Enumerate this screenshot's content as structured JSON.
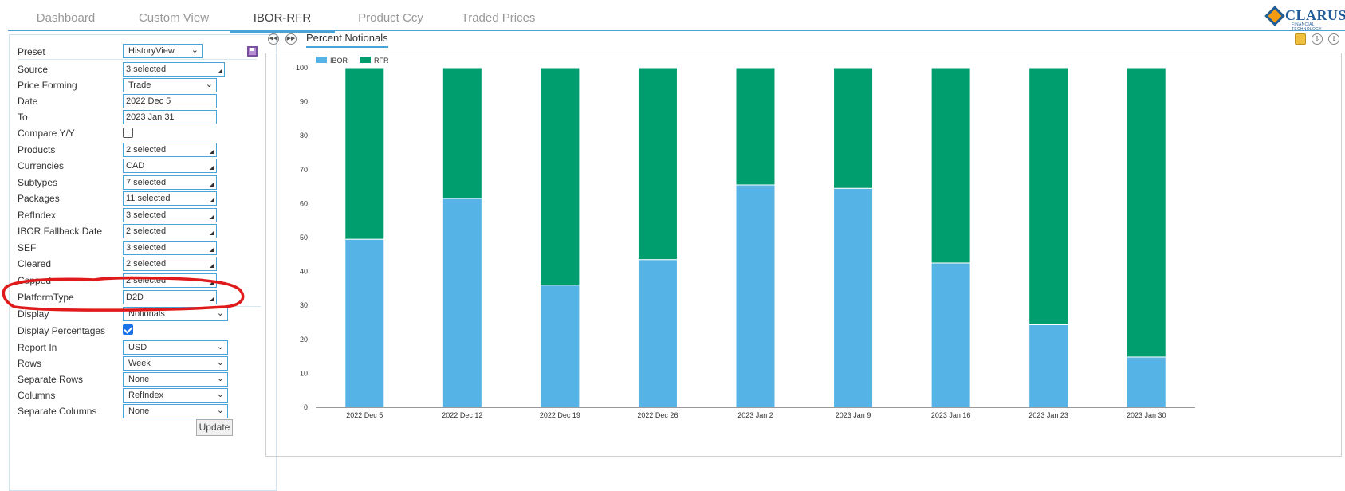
{
  "tabs": [
    {
      "label": "Dashboard",
      "active": false
    },
    {
      "label": "Custom View",
      "active": false
    },
    {
      "label": "IBOR-RFR",
      "active": true
    },
    {
      "label": "Product Ccy",
      "active": false
    },
    {
      "label": "Traded Prices",
      "active": false
    }
  ],
  "logo": {
    "name": "CLARUS",
    "sub": "FINANCIAL TECHNOLOGY"
  },
  "form": {
    "preset": {
      "label": "Preset",
      "value": "HistoryView"
    },
    "source": {
      "label": "Source",
      "value": "3 selected"
    },
    "price_forming": {
      "label": "Price Forming",
      "value": "Trade"
    },
    "date": {
      "label": "Date",
      "value": "2022 Dec 5"
    },
    "to": {
      "label": "To",
      "value": "2023 Jan 31"
    },
    "compare_yy": {
      "label": "Compare Y/Y",
      "checked": false
    },
    "products": {
      "label": "Products",
      "value": "2 selected"
    },
    "currencies": {
      "label": "Currencies",
      "value": "CAD"
    },
    "subtypes": {
      "label": "Subtypes",
      "value": "7 selected"
    },
    "packages": {
      "label": "Packages",
      "value": "11 selected"
    },
    "refindex": {
      "label": "RefIndex",
      "value": "3 selected"
    },
    "ibor_fallback": {
      "label": "IBOR Fallback Date",
      "value": "2 selected"
    },
    "sef": {
      "label": "SEF",
      "value": "3 selected"
    },
    "cleared": {
      "label": "Cleared",
      "value": "2 selected"
    },
    "capped": {
      "label": "Capped",
      "value": "2 selected"
    },
    "platform_type": {
      "label": "PlatformType",
      "value": "D2D"
    },
    "display": {
      "label": "Display",
      "value": "Notionals"
    },
    "display_pct": {
      "label": "Display Percentages",
      "checked": true
    },
    "report_in": {
      "label": "Report In",
      "value": "USD"
    },
    "rows": {
      "label": "Rows",
      "value": "Week"
    },
    "separate_rows": {
      "label": "Separate Rows",
      "value": "None"
    },
    "columns": {
      "label": "Columns",
      "value": "RefIndex"
    },
    "separate_columns": {
      "label": "Separate Columns",
      "value": "None"
    },
    "update_label": "Update"
  },
  "chart_tab": "Percent Notionals",
  "colors": {
    "ibor": "#56b3e6",
    "rfr": "#009e6e",
    "accent": "#48a3d8",
    "annotation": "#e0191b"
  },
  "chart_data": {
    "type": "bar",
    "stacked": true,
    "categories": [
      "2022 Dec 5",
      "2022 Dec 12",
      "2022 Dec 19",
      "2022 Dec 26",
      "2023 Jan 2",
      "2023 Jan 9",
      "2023 Jan 16",
      "2023 Jan 23",
      "2023 Jan 30"
    ],
    "series": [
      {
        "name": "IBOR",
        "values": [
          49.5,
          61.5,
          36,
          43.5,
          65.5,
          64.5,
          42.5,
          24.3,
          14.8
        ]
      },
      {
        "name": "RFR",
        "values": [
          50.5,
          38.5,
          64,
          56.5,
          34.5,
          35.5,
          57.5,
          75.7,
          85.2
        ]
      }
    ],
    "ylim": [
      0,
      100
    ],
    "yticks": [
      0,
      10,
      20,
      30,
      40,
      50,
      60,
      70,
      80,
      90,
      100
    ],
    "legend": "top-left",
    "grid": false
  }
}
